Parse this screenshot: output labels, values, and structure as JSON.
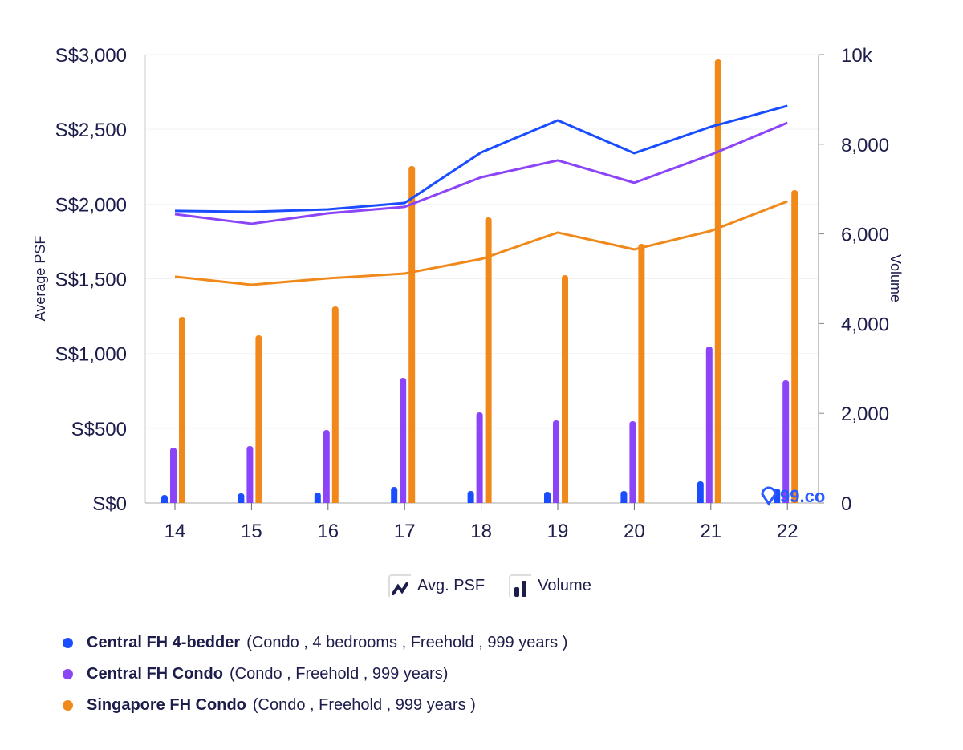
{
  "chart_data": {
    "type": "bar+line",
    "categories": [
      "14",
      "15",
      "16",
      "17",
      "18",
      "19",
      "20",
      "21",
      "22"
    ],
    "ylabel": "Average PSF",
    "y2label": "Volume",
    "ylim": [
      0,
      3000
    ],
    "y2lim": [
      0,
      10000
    ],
    "yticks": [
      "S$0",
      "S$500",
      "S$1,000",
      "S$1,500",
      "S$2,000",
      "S$2,500",
      "S$3,000"
    ],
    "y2ticks": [
      "0",
      "2,000",
      "4,000",
      "6,000",
      "8,000",
      "10k"
    ],
    "series": [
      {
        "name": "Central FH 4-bedder",
        "color": "#1a4dff",
        "psf": [
          1954,
          1948,
          1964,
          2007,
          2345,
          2560,
          2340,
          2517,
          2657
        ],
        "volume": [
          179,
          215,
          233,
          358,
          268,
          250,
          268,
          483,
          322
        ]
      },
      {
        "name": "Central FH Condo",
        "color": "#8c44f7",
        "psf": [
          1932,
          1868,
          1938,
          1981,
          2179,
          2292,
          2142,
          2330,
          2544
        ],
        "volume": [
          1234,
          1270,
          1628,
          2791,
          2022,
          1843,
          1825,
          3488,
          2737
        ]
      },
      {
        "name": "Singapore FH Condo",
        "color": "#f0891a",
        "psf": [
          1514,
          1460,
          1503,
          1535,
          1632,
          1809,
          1696,
          1820,
          2018
        ],
        "volume": [
          4150,
          3739,
          4383,
          7514,
          6369,
          5081,
          5778,
          9893,
          6977
        ]
      }
    ]
  },
  "legend": {
    "psf_label": "Avg. PSF",
    "volume_label": "Volume"
  },
  "series_legend": [
    {
      "name": "Central FH 4-bedder",
      "detail": "(Condo , 4 bedrooms , Freehold , 999 years )"
    },
    {
      "name": "Central FH Condo",
      "detail": "(Condo , Freehold , 999 years)"
    },
    {
      "name": "Singapore  FH Condo",
      "detail": "(Condo , Freehold , 999 years )"
    }
  ],
  "watermark": "99.co"
}
